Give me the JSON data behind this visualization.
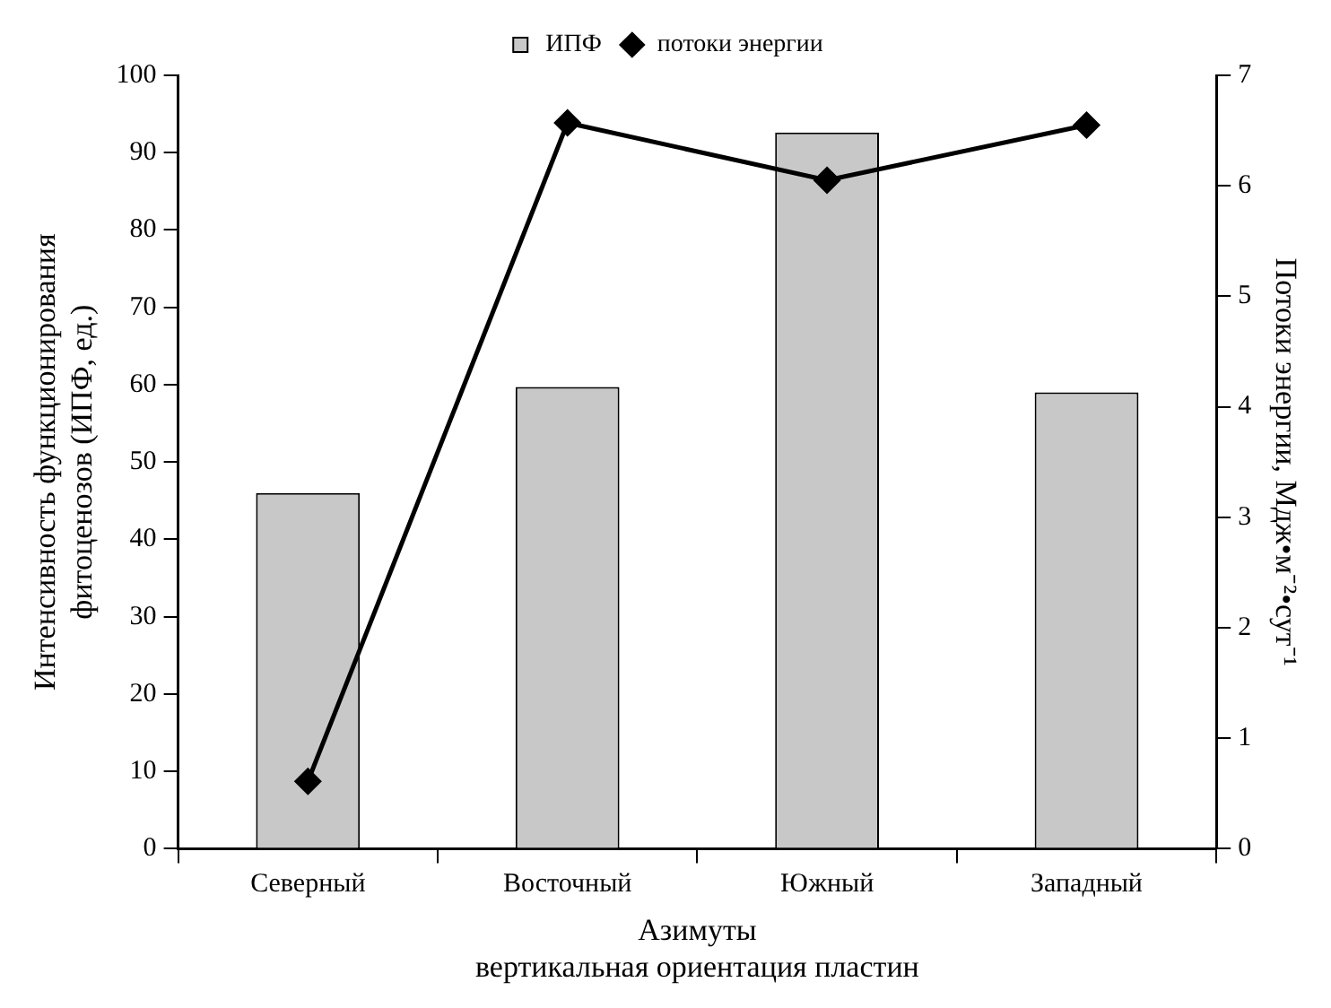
{
  "chart_data": {
    "type": "bar",
    "categories": [
      "Северный",
      "Восточный",
      "Южный",
      "Западный"
    ],
    "series": [
      {
        "name": "ИПФ",
        "color": "#c8c8c8",
        "values": [
          46,
          59.7,
          92.6,
          59
        ]
      },
      {
        "name": "потоки энергии",
        "type": "line",
        "axis": "y2",
        "color": "#000000",
        "marker": "diamond",
        "values": [
          0.61,
          6.57,
          6.05,
          6.55
        ]
      }
    ],
    "xlabel": "Азимуты\nвертикальная ориентация пластин",
    "ylabel": "Интенсивность функционирования\nфитоценозов (ИПФ, ед.)",
    "y2label": "Потоки энергии, Мдж•м⁻²•сут⁻¹",
    "ylim": [
      0,
      100
    ],
    "yticks": [
      0,
      10,
      20,
      30,
      40,
      50,
      60,
      70,
      80,
      90,
      100
    ],
    "y2lim": [
      0,
      7
    ],
    "y2ticks": [
      0,
      1,
      2,
      3,
      4,
      5,
      6,
      7
    ],
    "grid": false,
    "legend": "top"
  }
}
